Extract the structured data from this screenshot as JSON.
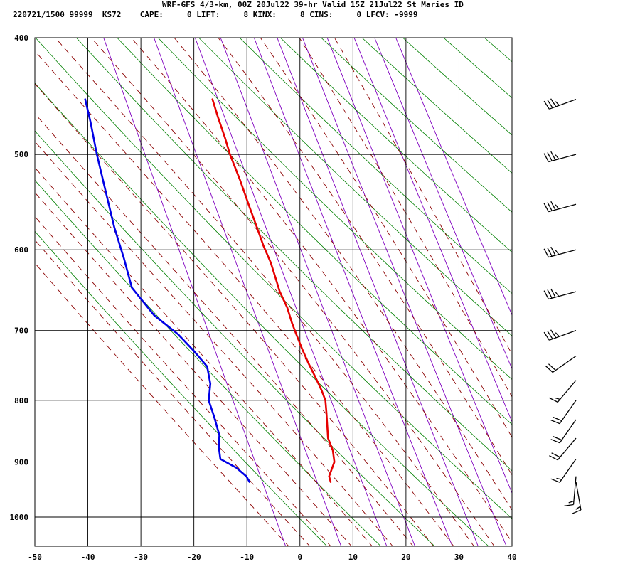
{
  "header": {
    "line1": "WRF-GFS 4/3-km, 00Z 20Jul22 39-hr Valid 15Z 21Jul22 St Maries ID",
    "line2": "220721/1500 99999  KS72    CAPE:     0 LIFT:     8 KINX:     8 CINS:     0 LFCV: -9999"
  },
  "chart_data": {
    "type": "line",
    "title": "",
    "xlabel": "",
    "ylabel": "",
    "x_ticks": [
      -50,
      -40,
      -30,
      -20,
      -10,
      0,
      10,
      20,
      30,
      40
    ],
    "p_ticks": [
      400,
      500,
      600,
      700,
      800,
      900,
      1000
    ],
    "xlim": [
      -50,
      40
    ],
    "plim": [
      400,
      1040
    ],
    "y_scale": "log-pressure",
    "skew": "skew-T",
    "grid": true,
    "colors": {
      "temperature": "#e60000",
      "dewpoint": "#0000e6",
      "dry_adiabat": "#008000",
      "moist_adiabat": "#8b0000",
      "mixing_ratio": "#8000c0"
    },
    "series": [
      {
        "key": "temperature",
        "points": [
          [
            -16.5,
            450
          ],
          [
            -15.5,
            465
          ],
          [
            -14.1,
            485
          ],
          [
            -13.2,
            500
          ],
          [
            -11.3,
            525
          ],
          [
            -9.7,
            550
          ],
          [
            -8.1,
            575
          ],
          [
            -6.9,
            595
          ],
          [
            -5.5,
            615
          ],
          [
            -4.5,
            635
          ],
          [
            -3.8,
            650
          ],
          [
            -2.4,
            670
          ],
          [
            -1.5,
            690
          ],
          [
            -0.7,
            705
          ],
          [
            0.4,
            725
          ],
          [
            1.6,
            745
          ],
          [
            2.9,
            765
          ],
          [
            4.1,
            785
          ],
          [
            4.8,
            800
          ],
          [
            5.0,
            820
          ],
          [
            5.3,
            860
          ],
          [
            6.2,
            880
          ],
          [
            6.5,
            900
          ],
          [
            5.5,
            925
          ],
          [
            5.8,
            935
          ]
        ]
      },
      {
        "key": "dewpoint",
        "points": [
          [
            -40.5,
            450
          ],
          [
            -39.5,
            470
          ],
          [
            -38.3,
            500
          ],
          [
            -36.5,
            540
          ],
          [
            -35.0,
            575
          ],
          [
            -33.2,
            610
          ],
          [
            -31.7,
            645
          ],
          [
            -27.5,
            680
          ],
          [
            -23.0,
            705
          ],
          [
            -20.0,
            728
          ],
          [
            -17.5,
            750
          ],
          [
            -16.9,
            775
          ],
          [
            -17.2,
            800
          ],
          [
            -16.2,
            825
          ],
          [
            -15.2,
            855
          ],
          [
            -15.3,
            875
          ],
          [
            -15.0,
            895
          ],
          [
            -12.0,
            910
          ],
          [
            -10.1,
            925
          ],
          [
            -9.5,
            935
          ]
        ]
      }
    ],
    "wind_barbs": [
      {
        "pressure": 450,
        "dir": 250,
        "speed": 35
      },
      {
        "pressure": 500,
        "dir": 255,
        "speed": 35
      },
      {
        "pressure": 550,
        "dir": 255,
        "speed": 35
      },
      {
        "pressure": 600,
        "dir": 255,
        "speed": 35
      },
      {
        "pressure": 650,
        "dir": 255,
        "speed": 35
      },
      {
        "pressure": 700,
        "dir": 250,
        "speed": 35
      },
      {
        "pressure": 735,
        "dir": 235,
        "speed": 20
      },
      {
        "pressure": 770,
        "dir": 220,
        "speed": 15
      },
      {
        "pressure": 800,
        "dir": 215,
        "speed": 20
      },
      {
        "pressure": 830,
        "dir": 215,
        "speed": 20
      },
      {
        "pressure": 860,
        "dir": 220,
        "speed": 20
      },
      {
        "pressure": 895,
        "dir": 215,
        "speed": 15
      },
      {
        "pressure": 925,
        "dir": 185,
        "speed": 15
      },
      {
        "pressure": 935,
        "dir": 170,
        "speed": 15
      }
    ]
  }
}
